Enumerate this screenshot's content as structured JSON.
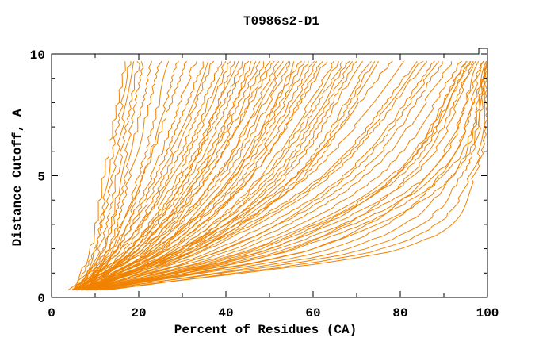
{
  "chart_data": {
    "type": "line",
    "title": "T0986s2-D1",
    "xlabel": "Percent of Residues (CA)",
    "ylabel": "Distance Cutoff, A",
    "xlim": [
      0,
      100
    ],
    "ylim": [
      0,
      10
    ],
    "x_major_ticks": [
      0,
      20,
      40,
      60,
      80,
      100
    ],
    "x_minor_ticks": [
      10,
      30,
      50,
      70,
      90
    ],
    "y_major_ticks": [
      0,
      5,
      10
    ],
    "y_minor_ticks": [
      1,
      2,
      3,
      4,
      6,
      7,
      8,
      9
    ],
    "grid": false,
    "legend_position": "none",
    "series_cutoffs": [
      0.3,
      2,
      5,
      9.7
    ],
    "series_units": "percent of residues (CA) within each distance cutoff (A); one curve per model",
    "series": [
      [
        5,
        9,
        12,
        17
      ],
      [
        6,
        10,
        13,
        18
      ],
      [
        5,
        10,
        14,
        19
      ],
      [
        6,
        11,
        15,
        20
      ],
      [
        7,
        12,
        16,
        21
      ],
      [
        6,
        12,
        17,
        23
      ],
      [
        7,
        13,
        18,
        25
      ],
      [
        6,
        14,
        20,
        27
      ],
      [
        7,
        15,
        21,
        29
      ],
      [
        4,
        13,
        21,
        31
      ],
      [
        5,
        14,
        23,
        33
      ],
      [
        6,
        15,
        24,
        35
      ],
      [
        5,
        16,
        26,
        37
      ],
      [
        6,
        17,
        27,
        39
      ],
      [
        7,
        18,
        29,
        41
      ],
      [
        5,
        18,
        30,
        43
      ],
      [
        6,
        19,
        32,
        45
      ],
      [
        7,
        20,
        33,
        47
      ],
      [
        6,
        21,
        35,
        49
      ],
      [
        5,
        22,
        36,
        51
      ],
      [
        7,
        23,
        38,
        53
      ],
      [
        6,
        24,
        40,
        55
      ],
      [
        8,
        25,
        41,
        57
      ],
      [
        7,
        26,
        43,
        59
      ],
      [
        6,
        27,
        45,
        61
      ],
      [
        8,
        28,
        46,
        63
      ],
      [
        7,
        29,
        48,
        65
      ],
      [
        6,
        30,
        50,
        67
      ],
      [
        8,
        31,
        52,
        69
      ],
      [
        7,
        32,
        54,
        71
      ],
      [
        8,
        33,
        56,
        73
      ],
      [
        7,
        34,
        58,
        75
      ],
      [
        8,
        26,
        44,
        60
      ],
      [
        6,
        22,
        38,
        52
      ],
      [
        5,
        20,
        34,
        46
      ],
      [
        7,
        24,
        42,
        56
      ],
      [
        8,
        30,
        51,
        68
      ],
      [
        5,
        15,
        25,
        36
      ],
      [
        6,
        16,
        28,
        40
      ],
      [
        7,
        19,
        31,
        44
      ],
      [
        6,
        20,
        34,
        48
      ],
      [
        7,
        21,
        36,
        50
      ],
      [
        8,
        23,
        39,
        54
      ],
      [
        6,
        25,
        42,
        58
      ],
      [
        7,
        27,
        46,
        62
      ],
      [
        8,
        29,
        49,
        66
      ],
      [
        7,
        31,
        53,
        70
      ],
      [
        8,
        34,
        57,
        74
      ],
      [
        6,
        18,
        31,
        42
      ],
      [
        7,
        30,
        56,
        78
      ],
      [
        8,
        32,
        59,
        81
      ],
      [
        7,
        34,
        62,
        84
      ],
      [
        9,
        36,
        64,
        86
      ],
      [
        8,
        38,
        67,
        88
      ],
      [
        9,
        40,
        70,
        90
      ],
      [
        8,
        42,
        72,
        92
      ],
      [
        9,
        44,
        75,
        94
      ],
      [
        8,
        46,
        78,
        95
      ],
      [
        10,
        48,
        80,
        96
      ],
      [
        9,
        50,
        83,
        97
      ],
      [
        10,
        52,
        86,
        98
      ],
      [
        9,
        54,
        88,
        99
      ],
      [
        10,
        56,
        90,
        100
      ],
      [
        8,
        40,
        68,
        89
      ],
      [
        9,
        47,
        79,
        96
      ],
      [
        10,
        60,
        92,
        100
      ],
      [
        9,
        35,
        63,
        85
      ],
      [
        10,
        55,
        82,
        97
      ],
      [
        11,
        60,
        86,
        99
      ],
      [
        10,
        64,
        89,
        100
      ],
      [
        12,
        68,
        92,
        100
      ],
      [
        11,
        72,
        94,
        100
      ],
      [
        13,
        76,
        96,
        100
      ],
      [
        10,
        50,
        79,
        95
      ],
      [
        12,
        80,
        97,
        100
      ]
    ]
  },
  "colors": {
    "line": "#f08200",
    "frame": "#000000",
    "text": "#000000",
    "background": "#ffffff"
  }
}
